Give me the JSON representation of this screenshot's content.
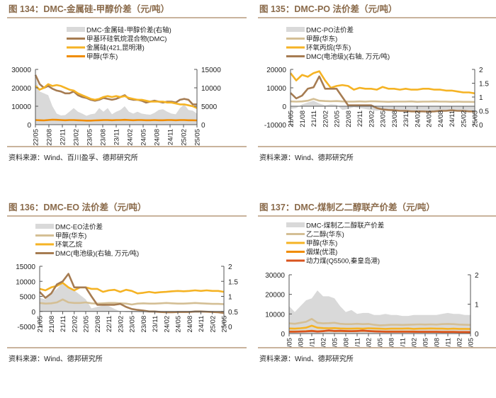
{
  "chart_data": [
    {
      "id": "fig134",
      "type": "line",
      "title": "图 134：DMC-金属硅-甲醇价差（元/吨）",
      "source": "资料来源：Wind、百川盈孚、德邦研究所",
      "xlabel": "",
      "ylabel": "",
      "y2label": "",
      "x_ticks": [
        "22/05",
        "22/08",
        "22/11",
        "23/02",
        "23/05",
        "23/08",
        "23/11",
        "24/02",
        "24/05",
        "24/08",
        "24/11",
        "25/02",
        "25/05"
      ],
      "ylim": [
        0,
        30000
      ],
      "y_ticks": [
        0,
        10000,
        20000,
        30000
      ],
      "y2lim": [
        0,
        15000
      ],
      "y2_ticks": [
        0,
        5000,
        10000,
        15000
      ],
      "legend_position": "top-center",
      "series": [
        {
          "name": "DMC-金属硅-甲醇价差(右轴)",
          "kind": "area",
          "axis": "right",
          "color": "#d9d9d9",
          "values": [
            13000,
            9000,
            8500,
            8000,
            5000,
            3000,
            2500,
            2600,
            3500,
            4500,
            3500,
            3000,
            2400,
            2800,
            3000,
            4500,
            3500,
            4500,
            2800,
            3500,
            4000,
            5000,
            3500,
            3000,
            3500,
            3000,
            2800,
            2700,
            3200,
            4000,
            4200,
            3500,
            3000,
            2800,
            4500,
            5500,
            4000,
            3800,
            3000
          ]
        },
        {
          "name": "甲基环硅氧烷混合物(DMC)",
          "kind": "line",
          "axis": "left",
          "color": "#a67c52",
          "values": [
            27000,
            22000,
            20000,
            21000,
            19500,
            18500,
            18000,
            17000,
            17000,
            18000,
            16000,
            15000,
            14500,
            13500,
            13000,
            13500,
            14500,
            14000,
            13500,
            14000,
            15000,
            16000,
            14000,
            13500,
            13500,
            13000,
            12000,
            12500,
            13000,
            12500,
            12000,
            12500,
            12500,
            12000,
            13500,
            14000,
            13500,
            11000,
            11000
          ]
        },
        {
          "name": "金属硅(421,昆明港)",
          "kind": "line",
          "axis": "left",
          "color": "#f5b324",
          "values": [
            21000,
            19000,
            20000,
            22000,
            21000,
            21500,
            21000,
            20000,
            19000,
            18500,
            17000,
            16000,
            15000,
            14000,
            13500,
            14000,
            15000,
            15500,
            15000,
            15500,
            15000,
            15500,
            14500,
            14000,
            13500,
            13500,
            13000,
            12500,
            12500,
            12500,
            12500,
            12000,
            12000,
            11500,
            11000,
            11000,
            10500,
            10000,
            9000
          ]
        },
        {
          "name": "甲醇(华东)",
          "kind": "line",
          "axis": "left",
          "color": "#f08c00",
          "values": [
            2500,
            2400,
            2300,
            2500,
            2700,
            2600,
            2500,
            2400,
            2500,
            2500,
            2400,
            2300,
            2200,
            2200,
            2300,
            2400,
            2500,
            2500,
            2400,
            2500,
            2500,
            2600,
            2500,
            2400,
            2500,
            2500,
            2400,
            2400,
            2500,
            2400,
            2400,
            2500,
            2500,
            2400,
            2500,
            2500,
            2400,
            2400,
            2300
          ]
        }
      ]
    },
    {
      "id": "fig135",
      "type": "line",
      "title": "图 135：DMC-PO 法价差（元/吨）",
      "source": "资料来源：Wind、德邦研究所",
      "x_ticks": [
        "21/05",
        "21/08",
        "21/11",
        "22/02",
        "22/05",
        "22/08",
        "22/11",
        "23/02",
        "23/05",
        "23/08",
        "23/11",
        "24/02",
        "24/05",
        "24/08",
        "24/11",
        "25/02",
        "25/05"
      ],
      "ylim": [
        -10000,
        20000
      ],
      "y_ticks": [
        -10000,
        0,
        10000,
        20000
      ],
      "y2lim": [
        0,
        2
      ],
      "y2_ticks": [
        0,
        0.5,
        1,
        1.5,
        2
      ],
      "legend_position": "top-center",
      "series": [
        {
          "name": "DMC-PO法价差",
          "kind": "area",
          "axis": "left",
          "color": "#d9d9d9",
          "values": [
            -1500,
            -1000,
            1000,
            2000,
            3000,
            1500,
            500,
            1000,
            800,
            -2000,
            -1500,
            -500,
            -1000,
            -1500,
            -2000,
            -2500,
            -2000,
            -2500,
            -2500,
            -2500,
            -2500,
            -2500,
            -2500,
            -2500,
            -2600,
            -2500,
            -2600,
            -2500,
            -2600,
            -2600,
            -2700,
            -2700,
            -2800
          ]
        },
        {
          "name": "甲醇(华东)",
          "kind": "line",
          "axis": "left",
          "color": "#d4bf95",
          "values": [
            2600,
            2500,
            2600,
            3000,
            4000,
            3000,
            2800,
            2700,
            2800,
            2600,
            2500,
            2500,
            2600,
            2500,
            2700,
            2600,
            2500,
            2400,
            2500,
            2500,
            2500,
            2600,
            2400,
            2500,
            2500,
            2600,
            2500,
            2500,
            2400,
            2500,
            2400,
            2400,
            2300
          ]
        },
        {
          "name": "环氧丙烷(华东)",
          "kind": "line",
          "axis": "left",
          "color": "#f5b324",
          "values": [
            18000,
            14000,
            17000,
            16000,
            18000,
            19000,
            14000,
            10000,
            11000,
            11500,
            11000,
            9000,
            10000,
            9500,
            9500,
            9000,
            10500,
            9500,
            9500,
            9000,
            9500,
            9000,
            9000,
            9500,
            9500,
            9000,
            9000,
            8500,
            8500,
            8000,
            7500,
            7500,
            7000
          ]
        },
        {
          "name": "DMC(电池级)(右轴, 万元/吨)",
          "kind": "line",
          "axis": "right",
          "color": "#a67c52",
          "values": [
            1.15,
            0.95,
            1.05,
            1.3,
            1.35,
            1.75,
            1.3,
            1.3,
            1.3,
            1.0,
            0.7,
            0.7,
            0.7,
            0.7,
            0.7,
            0.6,
            0.55,
            0.53,
            0.52,
            0.5,
            0.5,
            0.48,
            0.48,
            0.48,
            0.47,
            0.48,
            0.5,
            0.5,
            0.52,
            0.5,
            0.5,
            0.48,
            0.48
          ]
        }
      ]
    },
    {
      "id": "fig136",
      "type": "line",
      "title": "图 136：DMC-EO 法价差（元/吨）",
      "source": "资料来源：Wind、德邦研究所",
      "x_ticks": [
        "21/05",
        "21/08",
        "21/11",
        "22/02",
        "22/05",
        "22/08",
        "22/11",
        "23/02",
        "23/05",
        "23/08",
        "23/11",
        "24/02",
        "24/05",
        "24/08",
        "24/11",
        "25/02",
        "25/05"
      ],
      "ylim": [
        -5000,
        15000
      ],
      "y_ticks": [
        -5000,
        0,
        5000,
        10000,
        15000
      ],
      "y2lim": [
        0,
        2
      ],
      "y2_ticks": [
        0,
        0.5,
        1,
        1.5,
        2
      ],
      "legend_position": "top-center",
      "series": [
        {
          "name": "DMC-EO法价差",
          "kind": "area",
          "axis": "left",
          "color": "#d9d9d9",
          "values": [
            4500,
            4000,
            6000,
            7500,
            9500,
            8000,
            7000,
            5500,
            4000,
            1000,
            1500,
            2000,
            1800,
            800,
            0,
            -300,
            -300,
            -300,
            -400,
            -400,
            -500,
            -500,
            -500,
            -400,
            -500,
            -500,
            -400,
            -500,
            -500,
            -400,
            -500,
            -500,
            -500
          ]
        },
        {
          "name": "甲醇(华东)",
          "kind": "line",
          "axis": "left",
          "color": "#d4bf95",
          "values": [
            2800,
            2600,
            2700,
            3000,
            4000,
            3000,
            2800,
            2800,
            3000,
            2700,
            2600,
            2700,
            2800,
            2800,
            2700,
            2600,
            2300,
            2600,
            2700,
            2600,
            2600,
            2700,
            2800,
            2700,
            2600,
            2600,
            2700,
            2800,
            2700,
            2600,
            2500,
            2500,
            2400
          ]
        },
        {
          "name": "环氧乙烷",
          "kind": "line",
          "axis": "left",
          "color": "#f5b324",
          "values": [
            7500,
            7000,
            8000,
            8500,
            9500,
            8000,
            7000,
            8000,
            8000,
            7500,
            7500,
            6500,
            7000,
            7200,
            6500,
            7200,
            6800,
            6000,
            6200,
            6500,
            6200,
            6400,
            6500,
            6700,
            6800,
            6700,
            6800,
            7000,
            6800,
            7000,
            6800,
            6800,
            6500
          ]
        },
        {
          "name": "DMC(电池级)(右轴, 万元/吨)",
          "kind": "line",
          "axis": "right",
          "color": "#a67c52",
          "values": [
            1.15,
            0.95,
            1.1,
            1.4,
            1.5,
            1.75,
            1.3,
            1.3,
            1.3,
            1.0,
            0.72,
            0.72,
            0.72,
            0.72,
            0.75,
            0.65,
            0.58,
            0.55,
            0.53,
            0.5,
            0.5,
            0.48,
            0.47,
            0.47,
            0.48,
            0.48,
            0.48,
            0.5,
            0.5,
            0.49,
            0.48,
            0.47,
            0.45
          ]
        }
      ]
    },
    {
      "id": "fig137",
      "type": "line",
      "title": "图 137：DMC-煤制乙二醇联产价差（元/吨）",
      "source": "资料来源：Wind、德邦研究所",
      "x_ticks": [
        "21/05",
        "21/08",
        "21/11",
        "22/02",
        "22/05",
        "22/08",
        "22/11",
        "23/02",
        "23/05",
        "23/08",
        "23/11",
        "24/02",
        "24/05",
        "24/08",
        "24/11",
        "25/02",
        "25/05"
      ],
      "ylim": [
        0,
        30000
      ],
      "y_ticks": [
        0,
        10000,
        20000,
        30000
      ],
      "y2lim": [
        0,
        2
      ],
      "y2_ticks": [
        0,
        1,
        2
      ],
      "legend_position": "top-center",
      "series": [
        {
          "name": "DMC-煤制乙二醇联产价差",
          "kind": "area",
          "axis": "left",
          "color": "#d9d9d9",
          "values": [
            14000,
            11000,
            14000,
            17000,
            18000,
            22000,
            19000,
            19000,
            18000,
            14000,
            11000,
            12000,
            10000,
            10500,
            10500,
            9500,
            9500,
            10000,
            9500,
            9500,
            9000,
            9000,
            9500,
            9500,
            9500,
            9500,
            9500,
            10000,
            10500,
            10000,
            10000,
            9500,
            9500
          ]
        },
        {
          "name": "乙二醇(华东)",
          "kind": "line",
          "axis": "left",
          "color": "#d4bf95",
          "values": [
            5200,
            5000,
            5500,
            6000,
            7500,
            5500,
            5200,
            5300,
            5500,
            5000,
            4800,
            4800,
            5000,
            4800,
            4900,
            4500,
            4200,
            4300,
            4500,
            4500,
            4400,
            4500,
            4600,
            4700,
            4600,
            4700,
            4600,
            4800,
            4900,
            4800,
            4600,
            4500,
            4400
          ]
        },
        {
          "name": "甲醇(华东)",
          "kind": "line",
          "axis": "left",
          "color": "#f5b324",
          "values": [
            2600,
            2500,
            2700,
            3000,
            4000,
            3000,
            2800,
            2700,
            2800,
            2600,
            2500,
            2500,
            2600,
            2500,
            2700,
            2600,
            2500,
            2400,
            2500,
            2500,
            2500,
            2600,
            2400,
            2500,
            2500,
            2600,
            2500,
            2500,
            2400,
            2500,
            2400,
            2400,
            2300
          ]
        },
        {
          "name": "烟煤(优混)",
          "kind": "line",
          "axis": "left",
          "color": "#f08c00",
          "values": [
            1000,
            1000,
            1100,
            1200,
            1400,
            1100,
            1300,
            1500,
            1300,
            1300,
            1200,
            1200,
            1300,
            1400,
            1300,
            1200,
            1100,
            1000,
            1000,
            1000,
            1000,
            1000,
            1000,
            900,
            900,
            900,
            900,
            900,
            850,
            850,
            800,
            800,
            750
          ]
        },
        {
          "name": "动力煤(Q5500,秦皇岛港)",
          "kind": "line",
          "axis": "left",
          "color": "#d9531e",
          "values": [
            900,
            900,
            1000,
            1100,
            1300,
            1000,
            1200,
            1600,
            1300,
            1400,
            1300,
            1200,
            1300,
            1500,
            1300,
            1100,
            1000,
            900,
            900,
            900,
            900,
            900,
            850,
            850,
            850,
            850,
            850,
            800,
            800,
            800,
            750,
            750,
            700
          ]
        }
      ]
    }
  ]
}
